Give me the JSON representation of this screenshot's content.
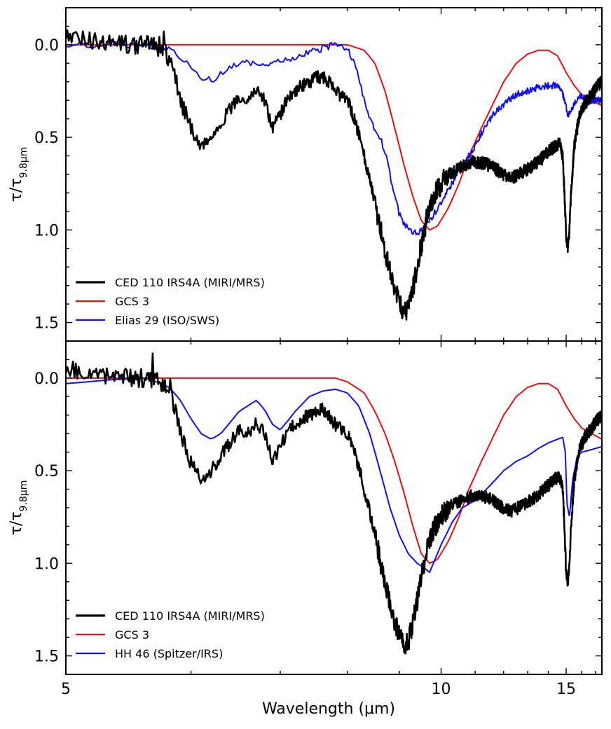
{
  "figure": {
    "x_label": "Wavelength (μm)",
    "y_label_main": "τ/τ",
    "y_label_sub": "9.8μm"
  },
  "colors": {
    "ced": "#000000",
    "gcs": "#e41010",
    "comparison": "#1010ee"
  },
  "chart_data": [
    {
      "type": "line",
      "panel": "top",
      "xlim": [
        5.0,
        17.5
      ],
      "ylim": [
        1.6,
        -0.2
      ],
      "y_inverted": true,
      "xscale": "reciprocal",
      "xticks_major": [
        5,
        10,
        15
      ],
      "xticks_major_labels": [
        "5",
        "10",
        "15"
      ],
      "yticks_major": [
        0.0,
        0.5,
        1.0,
        1.5
      ],
      "yticks_major_labels": [
        "0.0",
        "0.5",
        "1.0",
        "1.5"
      ],
      "legend_location": "lower-left",
      "series": [
        {
          "name": "CED 110 IRS4A (MIRI/MRS)",
          "color_key": "ced",
          "noisy": true,
          "x": [
            5.0,
            5.1,
            5.2,
            5.3,
            5.4,
            5.5,
            5.6,
            5.7,
            5.8,
            5.85,
            5.9,
            6.0,
            6.1,
            6.2,
            6.3,
            6.4,
            6.5,
            6.6,
            6.7,
            6.8,
            6.9,
            7.0,
            7.1,
            7.2,
            7.3,
            7.4,
            7.5,
            7.6,
            7.7,
            7.8,
            7.9,
            8.0,
            8.1,
            8.2,
            8.3,
            8.4,
            8.5,
            8.6,
            8.7,
            8.8,
            8.9,
            9.0,
            9.1,
            9.2,
            9.3,
            9.4,
            9.5,
            9.6,
            9.7,
            9.8,
            10.0,
            10.2,
            10.5,
            10.8,
            11.0,
            11.3,
            11.6,
            12.0,
            12.3,
            12.6,
            13.0,
            13.5,
            14.0,
            14.3,
            14.6,
            14.8,
            14.9,
            15.0,
            15.1,
            15.2,
            15.3,
            15.5,
            15.8,
            16.2,
            16.7,
            17.2,
            17.5
          ],
          "y": [
            -0.05,
            -0.03,
            -0.02,
            -0.01,
            -0.01,
            0.0,
            0.0,
            0.01,
            0.07,
            0.15,
            0.3,
            0.45,
            0.55,
            0.5,
            0.42,
            0.35,
            0.28,
            0.3,
            0.24,
            0.3,
            0.45,
            0.38,
            0.28,
            0.25,
            0.22,
            0.2,
            0.18,
            0.17,
            0.2,
            0.25,
            0.28,
            0.3,
            0.38,
            0.48,
            0.6,
            0.72,
            0.85,
            0.98,
            1.1,
            1.22,
            1.32,
            1.4,
            1.45,
            1.42,
            1.32,
            1.2,
            1.08,
            0.97,
            0.88,
            0.82,
            0.75,
            0.7,
            0.67,
            0.64,
            0.63,
            0.64,
            0.66,
            0.7,
            0.72,
            0.7,
            0.67,
            0.63,
            0.58,
            0.55,
            0.53,
            0.6,
            0.8,
            1.05,
            1.1,
            1.0,
            0.8,
            0.55,
            0.4,
            0.32,
            0.27,
            0.22,
            0.2
          ]
        },
        {
          "name": "GCS 3",
          "color_key": "gcs",
          "noisy": false,
          "x": [
            5.0,
            5.5,
            6.0,
            6.5,
            7.0,
            7.5,
            8.0,
            8.3,
            8.5,
            8.7,
            8.9,
            9.1,
            9.3,
            9.5,
            9.7,
            9.9,
            10.2,
            10.5,
            10.8,
            11.2,
            11.6,
            12.0,
            12.5,
            13.0,
            13.5,
            14.0,
            14.5,
            15.0,
            15.5,
            16.0,
            16.7,
            17.5
          ],
          "y": [
            0.0,
            0.0,
            0.0,
            0.0,
            0.0,
            0.0,
            0.0,
            0.03,
            0.1,
            0.25,
            0.45,
            0.65,
            0.82,
            0.95,
            1.0,
            0.98,
            0.88,
            0.75,
            0.6,
            0.45,
            0.32,
            0.2,
            0.1,
            0.05,
            0.03,
            0.03,
            0.06,
            0.15,
            0.22,
            0.27,
            0.3,
            0.33
          ]
        },
        {
          "name": "Elias 29 (ISO/SWS)",
          "color_key": "comparison",
          "noisy": true,
          "x": [
            5.0,
            5.3,
            5.6,
            5.8,
            5.9,
            6.0,
            6.1,
            6.2,
            6.3,
            6.4,
            6.6,
            6.8,
            7.0,
            7.2,
            7.4,
            7.6,
            7.8,
            7.9,
            8.0,
            8.1,
            8.2,
            8.3,
            8.4,
            8.5,
            8.6,
            8.7,
            8.8,
            8.9,
            9.0,
            9.2,
            9.4,
            9.6,
            9.8,
            10.0,
            10.3,
            10.6,
            11.0,
            11.3,
            11.6,
            12.0,
            12.5,
            13.0,
            13.5,
            14.0,
            14.4,
            14.7,
            14.9,
            15.1,
            15.3,
            15.6,
            16.0,
            16.5,
            17.0,
            17.5
          ],
          "y": [
            0.0,
            0.0,
            0.0,
            0.02,
            0.06,
            0.12,
            0.17,
            0.19,
            0.16,
            0.12,
            0.1,
            0.12,
            0.09,
            0.07,
            0.04,
            0.02,
            0.0,
            0.0,
            0.02,
            0.08,
            0.18,
            0.3,
            0.4,
            0.45,
            0.5,
            0.58,
            0.7,
            0.82,
            0.92,
            1.0,
            1.02,
            0.98,
            0.92,
            0.85,
            0.75,
            0.65,
            0.55,
            0.45,
            0.38,
            0.32,
            0.27,
            0.25,
            0.23,
            0.22,
            0.22,
            0.24,
            0.3,
            0.38,
            0.35,
            0.3,
            0.28,
            0.3,
            0.3,
            0.3
          ]
        }
      ]
    },
    {
      "type": "line",
      "panel": "bottom",
      "xlim": [
        5.0,
        17.5
      ],
      "ylim": [
        1.6,
        -0.2
      ],
      "y_inverted": true,
      "xscale": "reciprocal",
      "xticks_major": [
        5,
        10,
        15
      ],
      "xticks_major_labels": [
        "5",
        "10",
        "15"
      ],
      "yticks_major": [
        0.0,
        0.5,
        1.0,
        1.5
      ],
      "yticks_major_labels": [
        "0.0",
        "0.5",
        "1.0",
        "1.5"
      ],
      "legend_location": "lower-left",
      "series": [
        {
          "name": "CED 110 IRS4A (MIRI/MRS)",
          "color_key": "ced",
          "noisy": true,
          "x": [
            5.0,
            5.1,
            5.2,
            5.3,
            5.4,
            5.5,
            5.6,
            5.7,
            5.8,
            5.85,
            5.9,
            6.0,
            6.1,
            6.2,
            6.3,
            6.4,
            6.5,
            6.6,
            6.7,
            6.8,
            6.9,
            7.0,
            7.1,
            7.2,
            7.3,
            7.4,
            7.5,
            7.6,
            7.7,
            7.8,
            7.9,
            8.0,
            8.1,
            8.2,
            8.3,
            8.4,
            8.5,
            8.6,
            8.7,
            8.8,
            8.9,
            9.0,
            9.1,
            9.2,
            9.3,
            9.4,
            9.5,
            9.6,
            9.7,
            9.8,
            10.0,
            10.2,
            10.5,
            10.8,
            11.0,
            11.3,
            11.6,
            12.0,
            12.3,
            12.6,
            13.0,
            13.5,
            14.0,
            14.3,
            14.6,
            14.8,
            14.9,
            15.0,
            15.1,
            15.2,
            15.3,
            15.5,
            15.8,
            16.2,
            16.7,
            17.2,
            17.5
          ],
          "y": [
            -0.05,
            -0.03,
            -0.02,
            -0.01,
            -0.01,
            0.0,
            0.0,
            0.01,
            0.07,
            0.15,
            0.3,
            0.45,
            0.55,
            0.5,
            0.42,
            0.35,
            0.28,
            0.3,
            0.24,
            0.3,
            0.45,
            0.38,
            0.28,
            0.25,
            0.22,
            0.2,
            0.18,
            0.17,
            0.2,
            0.25,
            0.28,
            0.3,
            0.38,
            0.48,
            0.6,
            0.72,
            0.85,
            0.98,
            1.1,
            1.22,
            1.32,
            1.4,
            1.45,
            1.42,
            1.32,
            1.2,
            1.08,
            0.97,
            0.88,
            0.82,
            0.75,
            0.7,
            0.67,
            0.64,
            0.63,
            0.64,
            0.66,
            0.7,
            0.72,
            0.7,
            0.67,
            0.63,
            0.58,
            0.55,
            0.53,
            0.6,
            0.8,
            1.05,
            1.1,
            1.0,
            0.8,
            0.55,
            0.4,
            0.32,
            0.27,
            0.22,
            0.2
          ]
        },
        {
          "name": "GCS 3",
          "color_key": "gcs",
          "noisy": false,
          "x": [
            5.0,
            5.5,
            6.0,
            6.5,
            7.0,
            7.5,
            7.8,
            8.0,
            8.3,
            8.5,
            8.7,
            8.9,
            9.1,
            9.3,
            9.5,
            9.7,
            9.9,
            10.2,
            10.5,
            10.8,
            11.2,
            11.6,
            12.0,
            12.5,
            13.0,
            13.5,
            14.0,
            14.5,
            15.0,
            15.5,
            16.0,
            16.7,
            17.5
          ],
          "y": [
            0.0,
            0.0,
            0.0,
            0.0,
            0.0,
            0.0,
            0.0,
            0.02,
            0.08,
            0.18,
            0.3,
            0.45,
            0.62,
            0.8,
            0.95,
            1.0,
            0.98,
            0.88,
            0.75,
            0.6,
            0.45,
            0.32,
            0.2,
            0.1,
            0.05,
            0.03,
            0.03,
            0.06,
            0.15,
            0.22,
            0.27,
            0.3,
            0.33
          ]
        },
        {
          "name": "HH 46 (Spitzer/IRS)",
          "color_key": "comparison",
          "noisy": false,
          "x": [
            5.0,
            5.3,
            5.6,
            5.8,
            5.9,
            6.0,
            6.1,
            6.2,
            6.3,
            6.5,
            6.7,
            6.8,
            6.9,
            7.0,
            7.2,
            7.4,
            7.6,
            7.8,
            8.0,
            8.2,
            8.4,
            8.6,
            8.8,
            9.0,
            9.2,
            9.4,
            9.6,
            9.7,
            9.8,
            10.0,
            10.3,
            10.6,
            11.0,
            11.5,
            12.0,
            12.5,
            13.0,
            13.5,
            14.0,
            14.5,
            14.8,
            14.95,
            15.05,
            15.2,
            15.4,
            15.7,
            16.0,
            16.5,
            17.0,
            17.5
          ],
          "y": [
            0.03,
            0.01,
            0.0,
            0.05,
            0.12,
            0.22,
            0.3,
            0.33,
            0.3,
            0.18,
            0.12,
            0.17,
            0.25,
            0.28,
            0.18,
            0.1,
            0.07,
            0.06,
            0.08,
            0.15,
            0.3,
            0.5,
            0.7,
            0.85,
            0.95,
            1.0,
            1.03,
            1.05,
            1.0,
            0.9,
            0.78,
            0.7,
            0.66,
            0.58,
            0.5,
            0.45,
            0.42,
            0.38,
            0.35,
            0.33,
            0.32,
            0.4,
            0.68,
            0.75,
            0.55,
            0.42,
            0.4,
            0.39,
            0.38,
            0.37
          ]
        }
      ]
    }
  ]
}
